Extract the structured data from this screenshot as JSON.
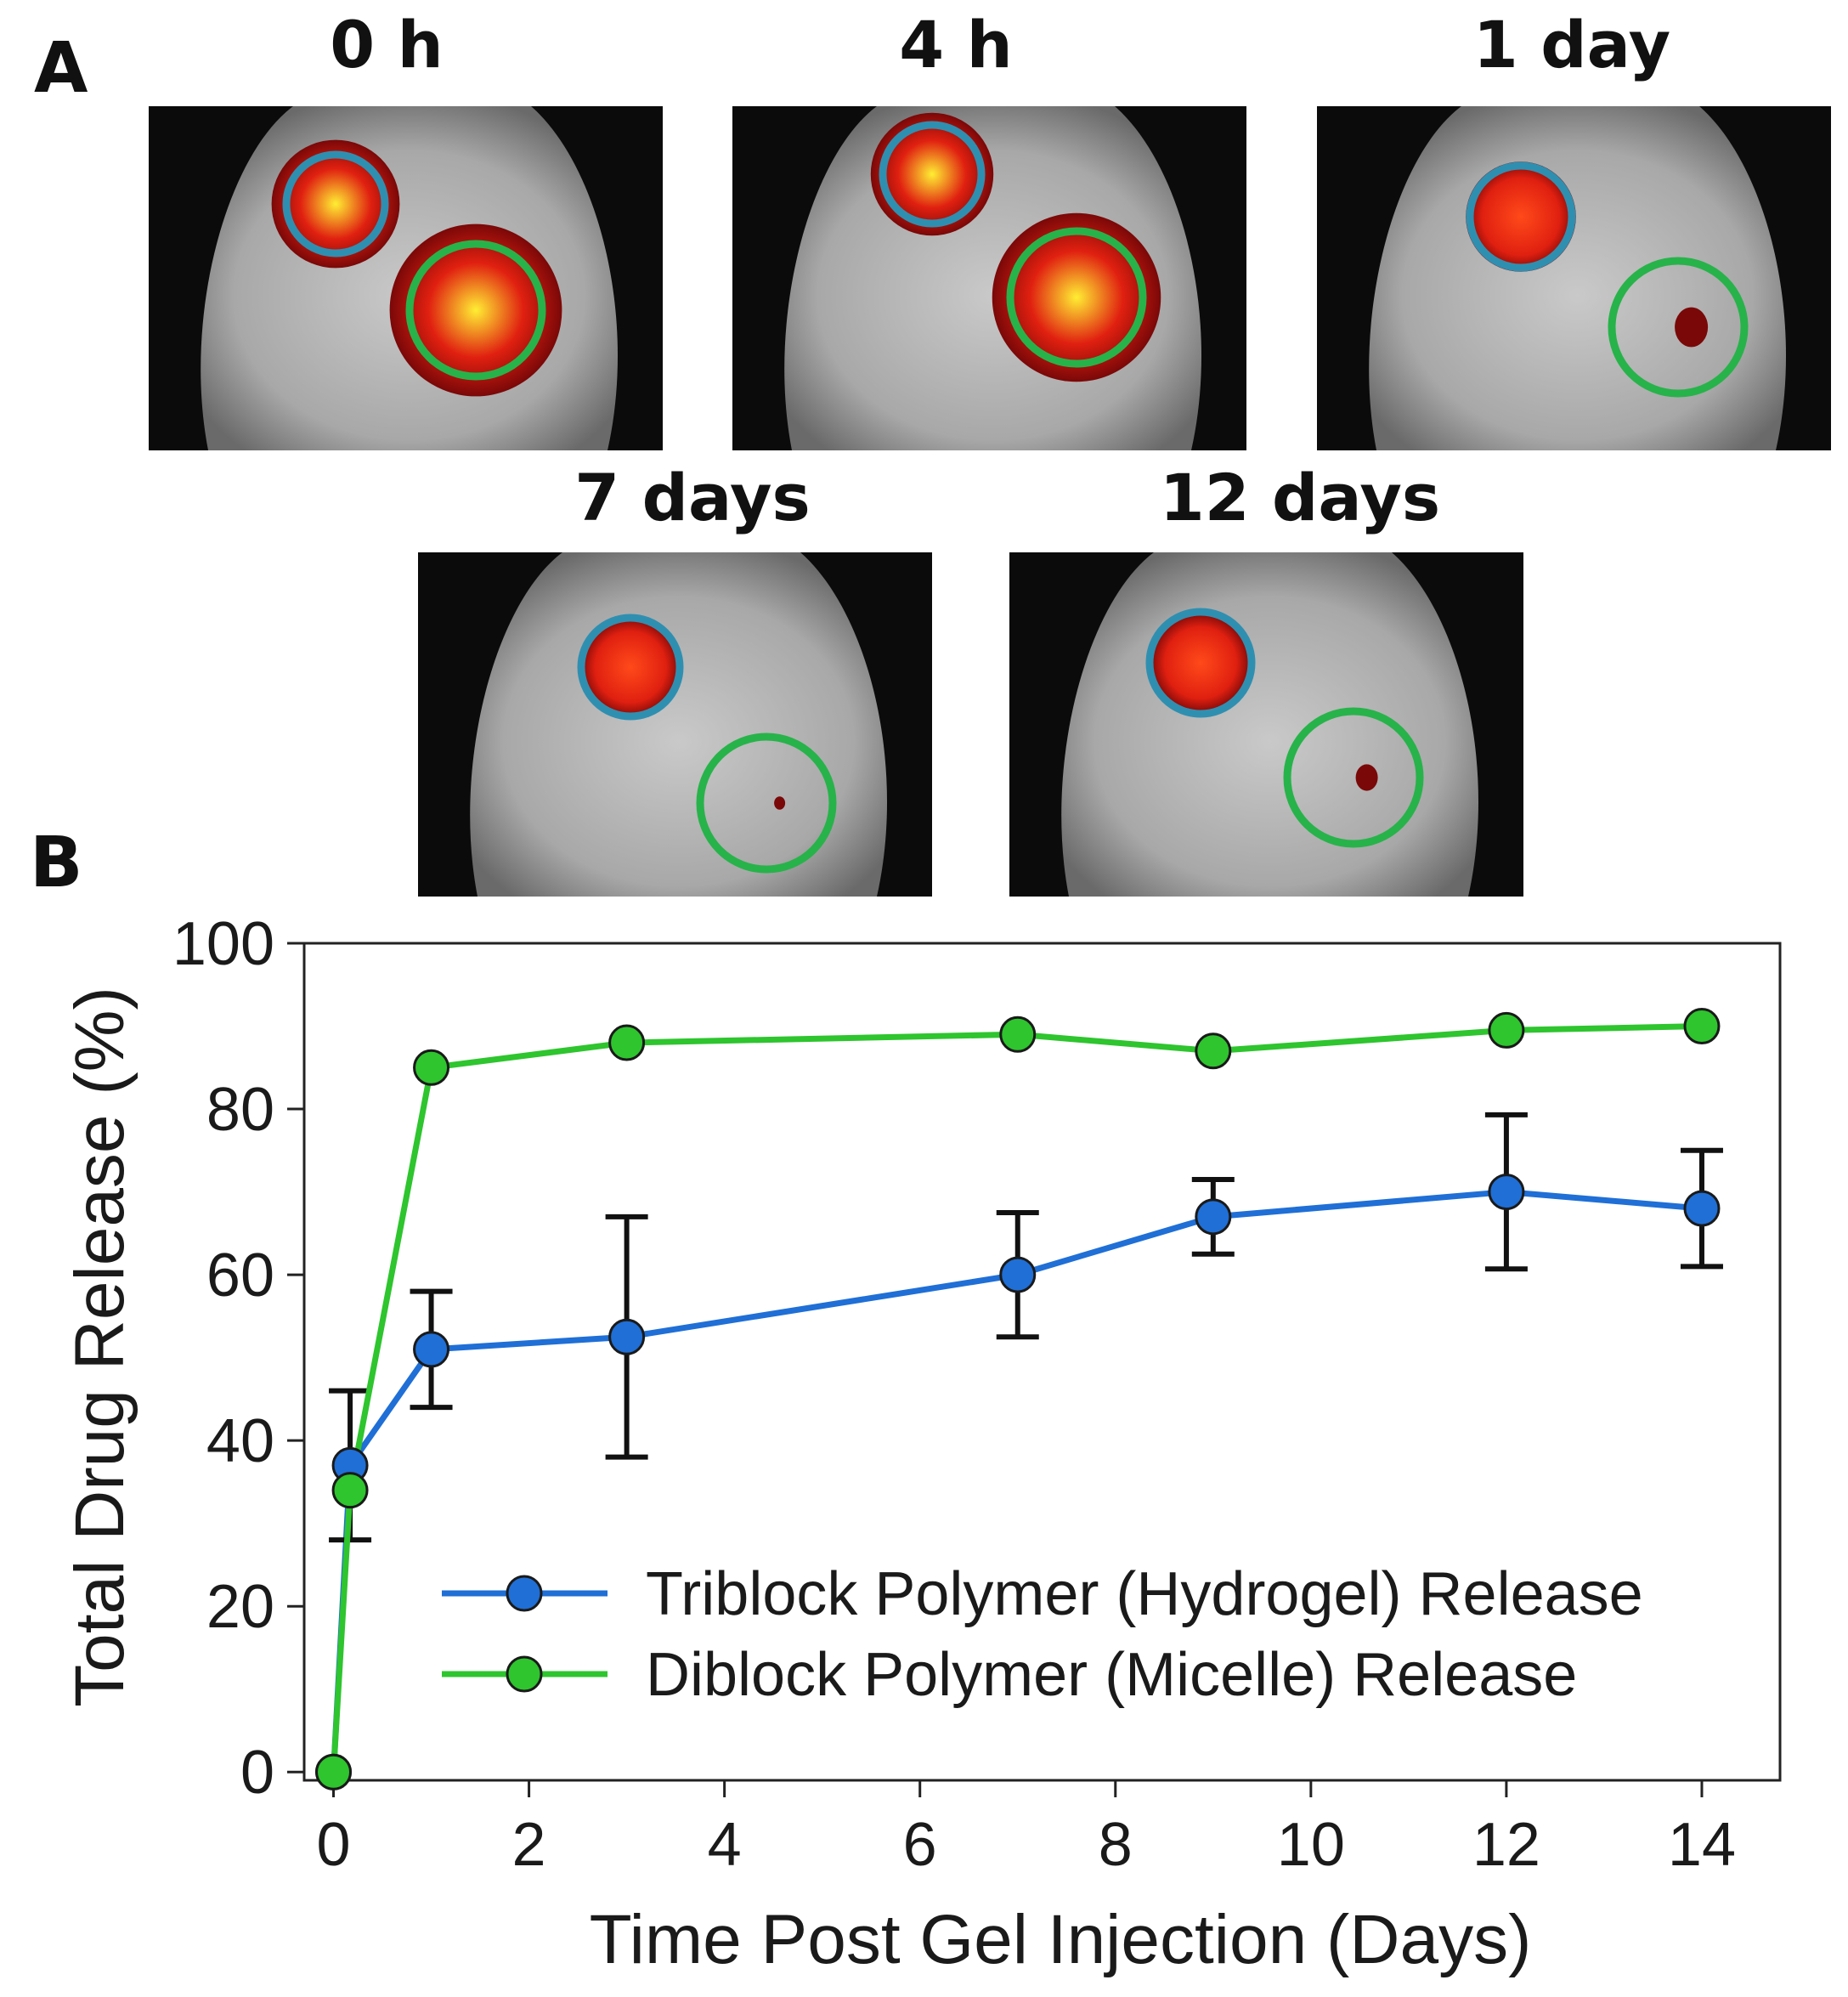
{
  "panel_a": {
    "letter": "A",
    "tiles": [
      {
        "label": "0 h",
        "blue_intensity": 1.0,
        "green_intensity": 1.0
      },
      {
        "label": "4 h",
        "blue_intensity": 0.9,
        "green_intensity": 0.95
      },
      {
        "label": "1 day",
        "blue_intensity": 0.6,
        "green_intensity": 0.15
      },
      {
        "label": "7 days",
        "blue_intensity": 0.5,
        "green_intensity": 0.05
      },
      {
        "label": "12 days",
        "blue_intensity": 0.45,
        "green_intensity": 0.1
      }
    ],
    "colors": {
      "blue_circle": "#2f8fb0",
      "green_circle": "#27b34a",
      "hot": "#ffee33",
      "warm": "#e02010",
      "cool": "#7a0808"
    }
  },
  "panel_b": {
    "letter": "B"
  },
  "chart_data": {
    "type": "line",
    "title": "",
    "xlabel": "Time Post Gel Injection (Days)",
    "ylabel": "Total Drug Release (%)",
    "xlim": [
      -0.3,
      14.8
    ],
    "ylim": [
      -1,
      100
    ],
    "xticks": [
      0,
      2,
      4,
      6,
      8,
      10,
      12,
      14
    ],
    "yticks": [
      0,
      20,
      40,
      60,
      80,
      100
    ],
    "legend_position": "bottom-right",
    "series": [
      {
        "name": "Triblock Polymer (Hydrogel) Release",
        "color": "#1f6fd6",
        "x": [
          0,
          0.17,
          1,
          3,
          7,
          9,
          12,
          14
        ],
        "y": [
          0,
          37,
          51,
          52.5,
          60,
          67,
          70,
          68
        ],
        "err": [
          0,
          9,
          7,
          14.5,
          7.5,
          4.5,
          9.3,
          7
        ]
      },
      {
        "name": "Diblock Polymer (Micelle) Release",
        "color": "#2ec52e",
        "x": [
          0,
          0.17,
          1,
          3,
          7,
          9,
          12,
          14
        ],
        "y": [
          0,
          34,
          85,
          88,
          89,
          87,
          89.5,
          90
        ],
        "err": [
          0,
          0,
          0,
          0,
          0,
          0,
          0,
          0
        ]
      }
    ]
  }
}
